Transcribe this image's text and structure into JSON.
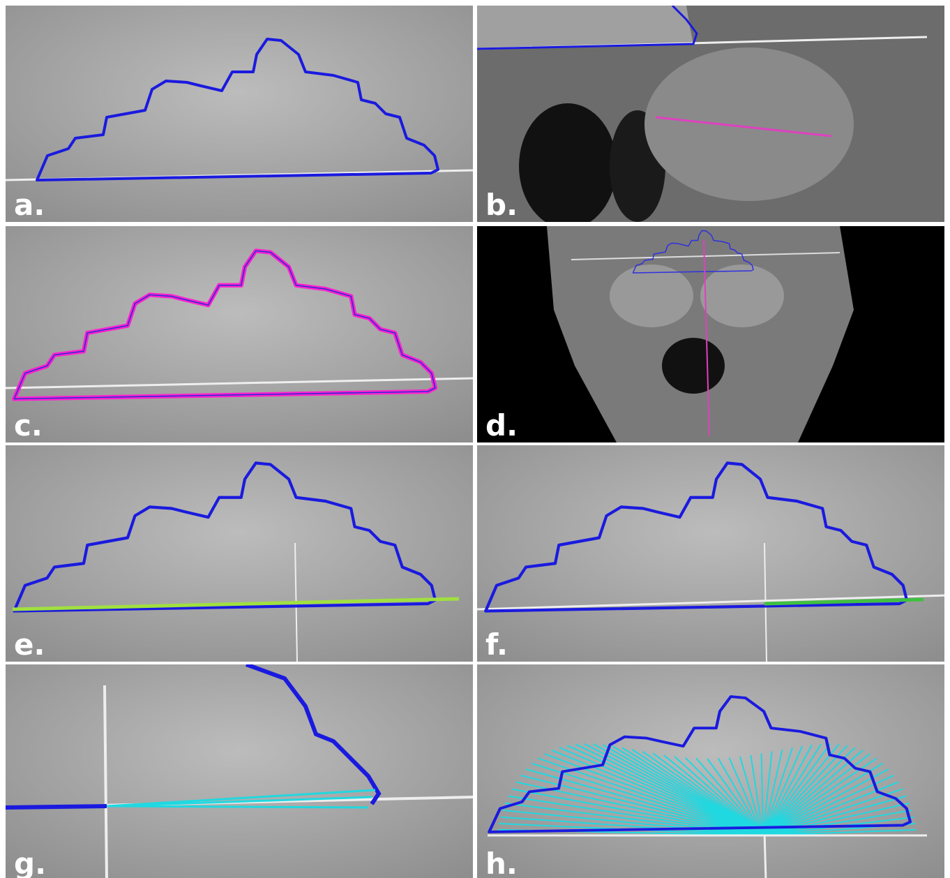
{
  "panels": [
    {
      "label": "a."
    },
    {
      "label": "b."
    },
    {
      "label": "c."
    },
    {
      "label": "d."
    },
    {
      "label": "e."
    },
    {
      "label": "f."
    },
    {
      "label": "g."
    },
    {
      "label": "h."
    }
  ]
}
